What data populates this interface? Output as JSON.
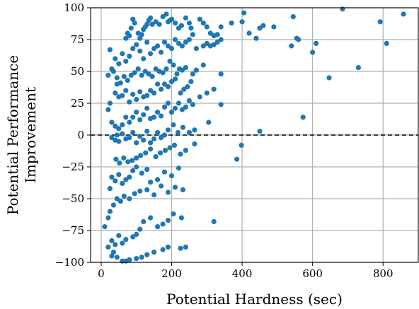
{
  "chart_data": {
    "type": "scatter",
    "title": "",
    "xlabel": "Potential Hardness (sec)",
    "ylabel": "Potential Performance Improvement",
    "xlim": [
      -30,
      900
    ],
    "ylim": [
      -100,
      100
    ],
    "x_ticks": [
      0,
      200,
      400,
      600,
      800
    ],
    "y_ticks": [
      -100,
      -75,
      -50,
      -25,
      0,
      25,
      50,
      75,
      100
    ],
    "grid": true,
    "reference_line": {
      "y": 0,
      "style": "dashed",
      "color": "#000000"
    },
    "point_color": "#1f77b4",
    "points": [
      [
        685,
        99
      ],
      [
        858,
        95
      ],
      [
        405,
        96
      ],
      [
        545,
        93
      ],
      [
        792,
        89
      ],
      [
        810,
        72
      ],
      [
        730,
        53
      ],
      [
        647,
        45
      ],
      [
        573,
        14
      ],
      [
        450,
        3
      ],
      [
        398,
        -8
      ],
      [
        385,
        -19
      ],
      [
        460,
        86
      ],
      [
        450,
        84
      ],
      [
        490,
        85
      ],
      [
        420,
        80
      ],
      [
        440,
        76
      ],
      [
        555,
        76
      ],
      [
        560,
        75
      ],
      [
        610,
        72
      ],
      [
        600,
        65
      ],
      [
        540,
        70
      ],
      [
        400,
        89
      ],
      [
        370,
        88
      ],
      [
        320,
        78
      ],
      [
        330,
        79
      ],
      [
        340,
        85
      ],
      [
        310,
        80
      ],
      [
        300,
        85
      ],
      [
        290,
        88
      ],
      [
        280,
        91
      ],
      [
        260,
        79
      ],
      [
        255,
        84
      ],
      [
        250,
        88
      ],
      [
        240,
        92
      ],
      [
        228,
        86
      ],
      [
        220,
        84
      ],
      [
        210,
        88
      ],
      [
        200,
        91
      ],
      [
        195,
        90
      ],
      [
        190,
        89
      ],
      [
        185,
        95
      ],
      [
        175,
        93
      ],
      [
        165,
        87
      ],
      [
        155,
        89
      ],
      [
        145,
        87
      ],
      [
        140,
        92
      ],
      [
        135,
        90
      ],
      [
        130,
        87
      ],
      [
        125,
        85
      ],
      [
        120,
        83
      ],
      [
        115,
        79
      ],
      [
        110,
        76
      ],
      [
        105,
        80
      ],
      [
        95,
        88
      ],
      [
        90,
        91
      ],
      [
        85,
        84
      ],
      [
        80,
        78
      ],
      [
        75,
        80
      ],
      [
        70,
        76
      ],
      [
        340,
        75
      ],
      [
        330,
        73
      ],
      [
        320,
        71
      ],
      [
        310,
        70
      ],
      [
        300,
        72
      ],
      [
        290,
        70
      ],
      [
        270,
        68
      ],
      [
        250,
        75
      ],
      [
        240,
        73
      ],
      [
        230,
        70
      ],
      [
        220,
        72
      ],
      [
        210,
        75
      ],
      [
        200,
        68
      ],
      [
        190,
        70
      ],
      [
        180,
        73
      ],
      [
        170,
        65
      ],
      [
        160,
        70
      ],
      [
        150,
        68
      ],
      [
        140,
        64
      ],
      [
        130,
        73
      ],
      [
        120,
        60
      ],
      [
        110,
        66
      ],
      [
        100,
        71
      ],
      [
        90,
        68
      ],
      [
        80,
        62
      ],
      [
        70,
        58
      ],
      [
        60,
        64
      ],
      [
        50,
        56
      ],
      [
        40,
        60
      ],
      [
        30,
        52
      ],
      [
        25,
        67
      ],
      [
        20,
        47
      ],
      [
        35,
        50
      ],
      [
        45,
        45
      ],
      [
        340,
        48
      ],
      [
        290,
        55
      ],
      [
        270,
        51
      ],
      [
        260,
        48
      ],
      [
        240,
        53
      ],
      [
        230,
        51
      ],
      [
        222,
        52
      ],
      [
        215,
        48
      ],
      [
        205,
        55
      ],
      [
        195,
        58
      ],
      [
        185,
        52
      ],
      [
        175,
        49
      ],
      [
        165,
        50
      ],
      [
        155,
        52
      ],
      [
        145,
        46
      ],
      [
        135,
        48
      ],
      [
        125,
        50
      ],
      [
        115,
        47
      ],
      [
        105,
        52
      ],
      [
        95,
        49
      ],
      [
        85,
        47
      ],
      [
        75,
        43
      ],
      [
        65,
        46
      ],
      [
        55,
        41
      ],
      [
        45,
        40
      ],
      [
        210,
        44
      ],
      [
        200,
        42
      ],
      [
        190,
        38
      ],
      [
        180,
        40
      ],
      [
        170,
        36
      ],
      [
        160,
        40
      ],
      [
        150,
        33
      ],
      [
        140,
        35
      ],
      [
        130,
        31
      ],
      [
        120,
        30
      ],
      [
        110,
        34
      ],
      [
        100,
        28
      ],
      [
        90,
        32
      ],
      [
        80,
        26
      ],
      [
        70,
        35
      ],
      [
        60,
        31
      ],
      [
        50,
        30
      ],
      [
        40,
        33
      ],
      [
        255,
        42
      ],
      [
        245,
        38
      ],
      [
        235,
        36
      ],
      [
        225,
        33
      ],
      [
        320,
        36
      ],
      [
        300,
        33
      ],
      [
        280,
        30
      ],
      [
        260,
        24
      ],
      [
        250,
        27
      ],
      [
        240,
        22
      ],
      [
        230,
        20
      ],
      [
        220,
        25
      ],
      [
        210,
        21
      ],
      [
        200,
        18
      ],
      [
        190,
        25
      ],
      [
        180,
        22
      ],
      [
        170,
        15
      ],
      [
        160,
        18
      ],
      [
        150,
        14
      ],
      [
        140,
        13
      ],
      [
        130,
        21
      ],
      [
        120,
        16
      ],
      [
        110,
        12
      ],
      [
        100,
        18
      ],
      [
        90,
        14
      ],
      [
        80,
        10
      ],
      [
        70,
        14
      ],
      [
        60,
        8
      ],
      [
        50,
        5
      ],
      [
        40,
        7
      ],
      [
        30,
        10
      ],
      [
        25,
        25
      ],
      [
        20,
        20
      ],
      [
        340,
        24
      ],
      [
        305,
        10
      ],
      [
        265,
        4
      ],
      [
        250,
        2
      ],
      [
        232,
        6
      ],
      [
        218,
        2
      ],
      [
        205,
        8
      ],
      [
        190,
        4
      ],
      [
        180,
        0
      ],
      [
        170,
        -2
      ],
      [
        160,
        2
      ],
      [
        150,
        -3
      ],
      [
        140,
        -6
      ],
      [
        130,
        3
      ],
      [
        120,
        -4
      ],
      [
        110,
        -1
      ],
      [
        100,
        -6
      ],
      [
        90,
        2
      ],
      [
        80,
        -2
      ],
      [
        70,
        -3
      ],
      [
        60,
        1
      ],
      [
        50,
        -5
      ],
      [
        45,
        0
      ],
      [
        40,
        -4
      ],
      [
        30,
        -2
      ],
      [
        208,
        -8
      ],
      [
        195,
        -10
      ],
      [
        182,
        -12
      ],
      [
        168,
        -14
      ],
      [
        155,
        -17
      ],
      [
        140,
        -11
      ],
      [
        126,
        -14
      ],
      [
        112,
        -16
      ],
      [
        100,
        -18
      ],
      [
        88,
        -20
      ],
      [
        76,
        -21
      ],
      [
        64,
        -18
      ],
      [
        52,
        -22
      ],
      [
        42,
        -19
      ],
      [
        265,
        -7
      ],
      [
        240,
        -12
      ],
      [
        225,
        -15
      ],
      [
        220,
        -26
      ],
      [
        200,
        -32
      ],
      [
        180,
        -29
      ],
      [
        160,
        -35
      ],
      [
        140,
        -37
      ],
      [
        130,
        -27
      ],
      [
        115,
        -30
      ],
      [
        100,
        -25
      ],
      [
        90,
        -28
      ],
      [
        80,
        -33
      ],
      [
        70,
        -35
      ],
      [
        60,
        -38
      ],
      [
        50,
        -31
      ],
      [
        40,
        -36
      ],
      [
        30,
        -33
      ],
      [
        25,
        -42
      ],
      [
        232,
        -43
      ],
      [
        210,
        -41
      ],
      [
        190,
        -45
      ],
      [
        170,
        -40
      ],
      [
        150,
        -47
      ],
      [
        130,
        -43
      ],
      [
        110,
        -44
      ],
      [
        95,
        -46
      ],
      [
        80,
        -50
      ],
      [
        65,
        -48
      ],
      [
        55,
        -52
      ],
      [
        45,
        -50
      ],
      [
        35,
        -55
      ],
      [
        25,
        -60
      ],
      [
        20,
        -65
      ],
      [
        228,
        -65
      ],
      [
        205,
        -62
      ],
      [
        190,
        -67
      ],
      [
        175,
        -70
      ],
      [
        160,
        -72
      ],
      [
        140,
        -65
      ],
      [
        120,
        -68
      ],
      [
        110,
        -74
      ],
      [
        100,
        -78
      ],
      [
        90,
        -80
      ],
      [
        70,
        -82
      ],
      [
        60,
        -85
      ],
      [
        50,
        -79
      ],
      [
        40,
        -86
      ],
      [
        30,
        -83
      ],
      [
        20,
        -88
      ],
      [
        10,
        -72
      ],
      [
        320,
        -68
      ],
      [
        240,
        -88
      ],
      [
        225,
        -89
      ],
      [
        190,
        -88
      ],
      [
        175,
        -90
      ],
      [
        150,
        -92
      ],
      [
        130,
        -94
      ],
      [
        115,
        -96
      ],
      [
        100,
        -97
      ],
      [
        80,
        -98
      ],
      [
        70,
        -99
      ],
      [
        60,
        -99
      ],
      [
        45,
        -96
      ],
      [
        30,
        -95
      ],
      [
        35,
        -92
      ]
    ]
  }
}
